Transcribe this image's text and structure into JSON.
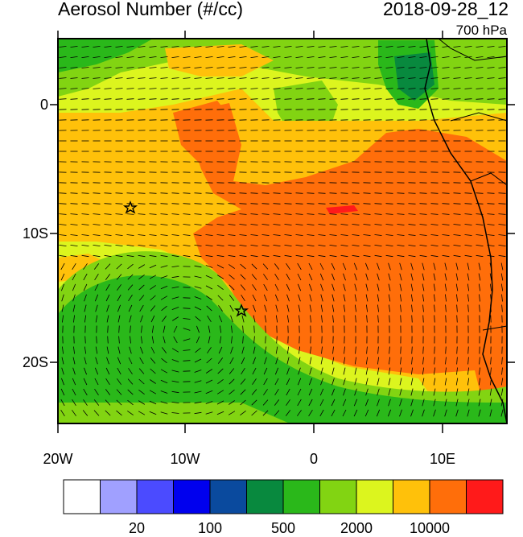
{
  "header": {
    "title": "Aerosol Number (#/cc)",
    "datetime": "2018-09-28_12",
    "level": "700 hPa"
  },
  "axes": {
    "lat_labels": [
      "0",
      "10S",
      "20S"
    ],
    "lon_labels": [
      "20W",
      "10W",
      "0",
      "10E"
    ]
  },
  "colorbar": {
    "colors": [
      "#ffffff",
      "#a0a0ff",
      "#4b4bff",
      "#0000ee",
      "#0a4a9e",
      "#08893e",
      "#2ab81a",
      "#82d412",
      "#dcf51e",
      "#ffc10a",
      "#ff6e0a",
      "#ff1a1a"
    ],
    "tick_labels": [
      "20",
      "100",
      "500",
      "2000",
      "10000"
    ]
  },
  "markers": {
    "symbol": "star",
    "count": 2
  }
}
